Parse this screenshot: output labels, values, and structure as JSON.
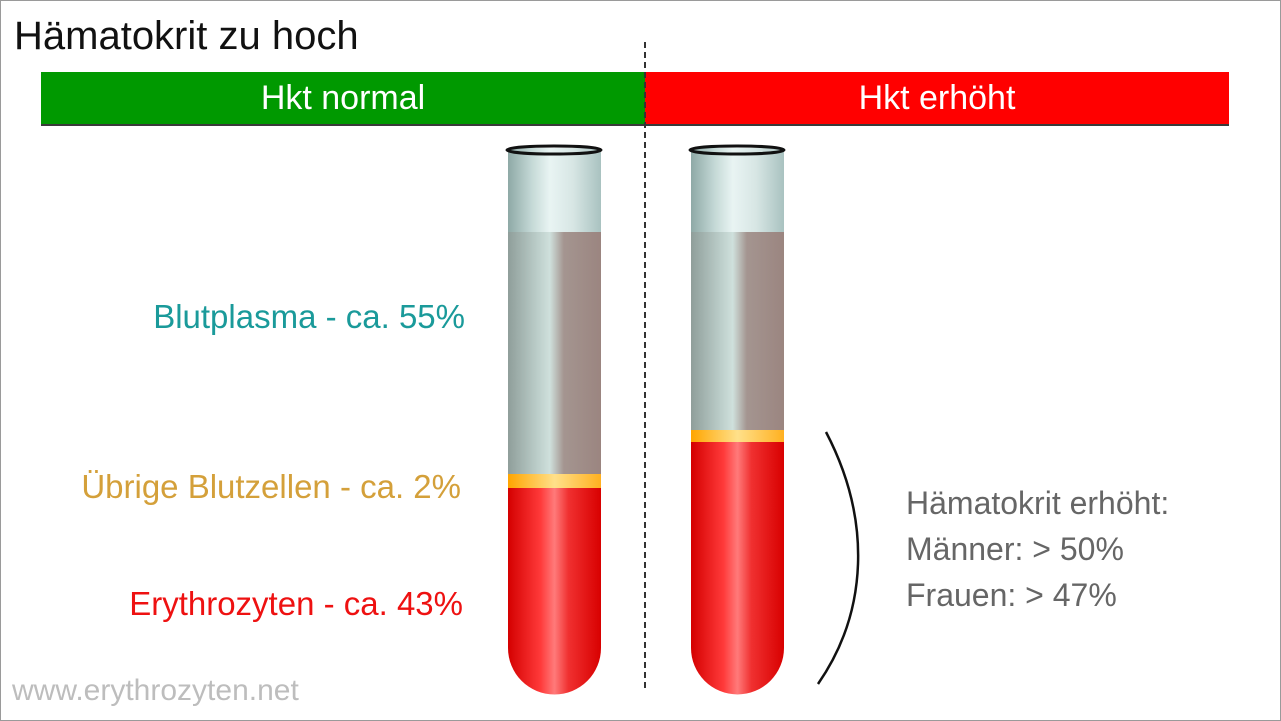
{
  "title": "Hämatokrit zu hoch",
  "header": {
    "normal_label": "Hkt normal",
    "high_label": "Hkt erhöht"
  },
  "labels": {
    "plasma": "Blutplasma - ca. 55%",
    "other_cells": "Übrige Blutzellen - ca. 2%",
    "erythrocytes": "Erythrozyten - ca. 43%"
  },
  "info": {
    "heading": "Hämatokrit erhöht:",
    "men": "Männer: > 50%",
    "women": "Frauen: > 47%"
  },
  "watermark": "www.erythrozyten.net",
  "colors": {
    "normal": "#009900",
    "high": "#ff0000",
    "plasma_text": "#1a9a9a",
    "other_text": "#d4a03a",
    "ery_text": "#ee1111",
    "info_text": "#666666"
  }
}
